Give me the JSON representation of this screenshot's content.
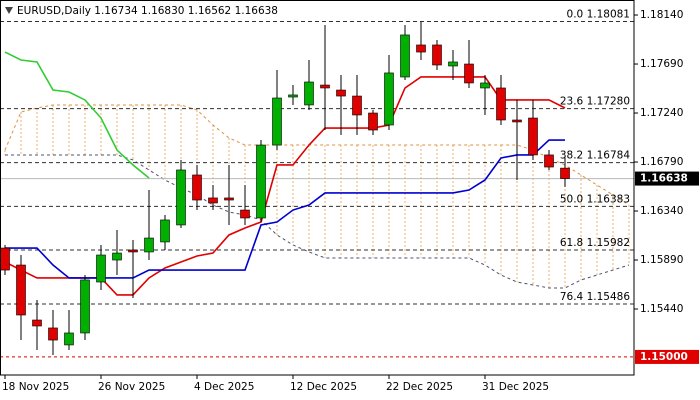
{
  "chart_data": {
    "type": "candlestick",
    "title": "EURUSD,Daily  1.16734 1.16830 1.16562 1.16638",
    "categories": [
      "18 Nov 2025",
      null,
      null,
      null,
      null,
      null,
      "26 Nov 2025",
      null,
      null,
      null,
      null,
      null,
      "4 Dec 2025",
      null,
      null,
      null,
      null,
      null,
      "12 Dec 2025",
      null,
      null,
      null,
      null,
      null,
      "22 Dec 2025",
      null,
      null,
      null,
      null,
      null,
      "31 Dec 2025",
      null,
      null,
      null,
      null,
      null,
      null,
      null,
      null,
      null
    ],
    "open": [
      1.16,
      1.15844,
      1.15339,
      1.15266,
      1.1511,
      1.1522,
      1.15688,
      1.1589,
      1.15982,
      1.15964,
      1.16056,
      1.16212,
      1.16671,
      1.1646,
      1.1646,
      1.16349,
      1.16276,
      1.16946,
      1.17387,
      1.17314,
      1.17497,
      1.17451,
      1.17396,
      1.1724,
      1.1713,
      1.17571,
      1.17865,
      1.17865,
      1.17672,
      1.1769,
      1.1747,
      1.1747,
      1.17176,
      1.17194,
      1.16855,
      1.16734,
      null,
      null,
      null,
      null
    ],
    "high": [
      1.16028,
      1.15936,
      1.15523,
      1.15431,
      1.15431,
      1.15752,
      1.16028,
      1.16166,
      1.16074,
      1.16533,
      1.16303,
      1.16809,
      1.16763,
      1.16579,
      1.16763,
      1.16579,
      1.16992,
      1.17635,
      1.17497,
      1.17727,
      1.18048,
      1.17589,
      1.17589,
      1.17268,
      1.17773,
      1.18048,
      1.18081,
      1.17911,
      1.17819,
      1.17911,
      1.17589,
      1.17589,
      1.1736,
      1.1736,
      1.169,
      1.1683,
      null,
      null,
      null,
      null
    ],
    "low": [
      1.15752,
      1.15155,
      1.15064,
      1.15018,
      1.15064,
      1.15155,
      1.15615,
      1.15752,
      1.15541,
      1.1589,
      1.15982,
      1.16184,
      1.16349,
      1.16349,
      1.16212,
      1.16212,
      1.16239,
      1.169,
      1.17314,
      1.17268,
      1.17084,
      1.17038,
      1.17038,
      1.17038,
      1.17084,
      1.17543,
      1.17727,
      1.17635,
      1.17543,
      1.1747,
      1.17222,
      1.1713,
      1.16625,
      1.16809,
      1.16717,
      1.16562,
      null,
      null,
      null,
      null
    ],
    "close": [
      1.15798,
      1.15385,
      1.15284,
      1.15155,
      1.1522,
      1.15707,
      1.15936,
      1.15954,
      1.15964,
      1.16092,
      1.16258,
      1.16717,
      1.16441,
      1.16414,
      1.16441,
      1.16276,
      1.16946,
      1.17378,
      1.17406,
      1.17525,
      1.1747,
      1.17396,
      1.17222,
      1.17084,
      1.17608,
      1.17957,
      1.178,
      1.17681,
      1.17709,
      1.17516,
      1.17516,
      1.17176,
      1.17158,
      1.16855,
      1.16744,
      1.16638,
      null,
      null,
      null,
      null
    ],
    "up_color": "#00b000",
    "down_color": "#e00000",
    "lines": [
      {
        "color": "#e00000",
        "values": [
          1.15872,
          1.15798,
          1.15725,
          1.15725,
          1.15725,
          1.15725,
          1.15725,
          1.15569,
          1.15569,
          1.15725,
          1.15817,
          1.15872,
          1.15927,
          1.15954,
          1.1612,
          1.16184,
          1.16239,
          1.16763,
          1.16763,
          1.16946,
          1.17102,
          1.17102,
          1.17102,
          1.17102,
          1.1713,
          1.1747,
          1.17571,
          1.17571,
          1.17571,
          1.17571,
          1.17571,
          1.1736,
          1.1736,
          1.1736,
          1.1736,
          1.17286,
          null,
          null,
          null,
          null
        ]
      },
      {
        "color": "#0000d0",
        "values": [
          1.16,
          1.16,
          1.16,
          1.15844,
          1.15725,
          1.15725,
          1.15725,
          1.15725,
          1.15725,
          1.15798,
          1.15798,
          1.15798,
          1.15798,
          1.15798,
          1.15798,
          1.15798,
          1.16212,
          1.16239,
          1.16349,
          1.16395,
          1.16506,
          1.16506,
          1.16506,
          1.16506,
          1.16506,
          1.16506,
          1.16506,
          1.16506,
          1.16506,
          1.16533,
          1.16625,
          1.16827,
          1.16855,
          1.16855,
          1.16992,
          1.16992,
          null,
          null,
          null,
          null
        ]
      },
      {
        "color": "#33cc33",
        "values": [
          1.178,
          1.17727,
          1.17709,
          1.17451,
          1.17433,
          1.1736,
          1.17194,
          1.169,
          1.16763,
          1.16643,
          null,
          null,
          null,
          null,
          null,
          null,
          null,
          null,
          null,
          null,
          null,
          null,
          null,
          null,
          null,
          null,
          null,
          null,
          null,
          null,
          null,
          null,
          null,
          null,
          null,
          null,
          null,
          null,
          null,
          null
        ]
      }
    ],
    "cloud": {
      "fill_color": "#e8b070",
      "spans": [
        {
          "color": "#e09040",
          "values": [
            1.169,
            1.17249,
            1.17286,
            1.17314,
            1.17314,
            1.17314,
            1.17314,
            1.17314,
            1.17314,
            1.17314,
            1.17314,
            1.17314,
            1.17268,
            1.1713,
            1.17011,
            1.16946,
            1.16946,
            1.16946,
            1.16946,
            1.16946,
            1.16946,
            1.16946,
            1.16946,
            1.16946,
            1.16946,
            1.16946,
            1.16946,
            1.16946,
            1.16946,
            1.16946,
            1.16946,
            1.16946,
            1.16946,
            1.169,
            1.16827,
            1.16763,
            1.16671,
            1.16579,
            1.16487,
            1.16395
          ]
        },
        {
          "color": "#505070",
          "values": [
            1.16855,
            1.16855,
            1.16855,
            1.16855,
            1.16855,
            1.16855,
            1.16855,
            1.16855,
            1.16809,
            1.16717,
            1.16625,
            1.16551,
            1.16487,
            1.16395,
            1.16331,
            1.16303,
            1.16258,
            1.1612,
            1.16028,
            1.15964,
            1.15909,
            1.15909,
            1.15909,
            1.15909,
            1.15909,
            1.15909,
            1.15909,
            1.15909,
            1.15909,
            1.15909,
            1.15844,
            1.15752,
            1.15688,
            1.15661,
            1.15633,
            1.15633,
            1.15707,
            1.15752,
            1.15798,
            1.15844
          ]
        }
      ]
    },
    "levels": [
      {
        "value": 1.18081,
        "label": "0.0 1.18081"
      },
      {
        "value": 1.1728,
        "label": "23.6 1.17280"
      },
      {
        "value": 1.16784,
        "label": "38.2 1.16784"
      },
      {
        "value": 1.16383,
        "label": "50.0 1.16383"
      },
      {
        "value": 1.15982,
        "label": "61.8 1.15982"
      },
      {
        "value": 1.15486,
        "label": "76.4 1.15486"
      }
    ],
    "level_color": "#303030",
    "price_line": {
      "value": 1.16638,
      "label": "1.16638",
      "color": "#b8b8b8",
      "box_color": "#000000"
    },
    "alert_line": {
      "value": 1.15,
      "label": "1.15000",
      "color": "#e00000",
      "box_color": "#e00000"
    },
    "ylim": [
      1.14834,
      1.18278
    ],
    "yticks": [
      {
        "value": 1.1814,
        "label": "1.18140"
      },
      {
        "value": 1.1769,
        "label": "1.17690"
      },
      {
        "value": 1.1724,
        "label": "1.17240"
      },
      {
        "value": 1.1679,
        "label": "1.16790"
      },
      {
        "value": 1.1634,
        "label": "1.16340"
      },
      {
        "value": 1.1589,
        "label": "1.15890"
      },
      {
        "value": 1.1544,
        "label": "1.15440"
      }
    ]
  }
}
